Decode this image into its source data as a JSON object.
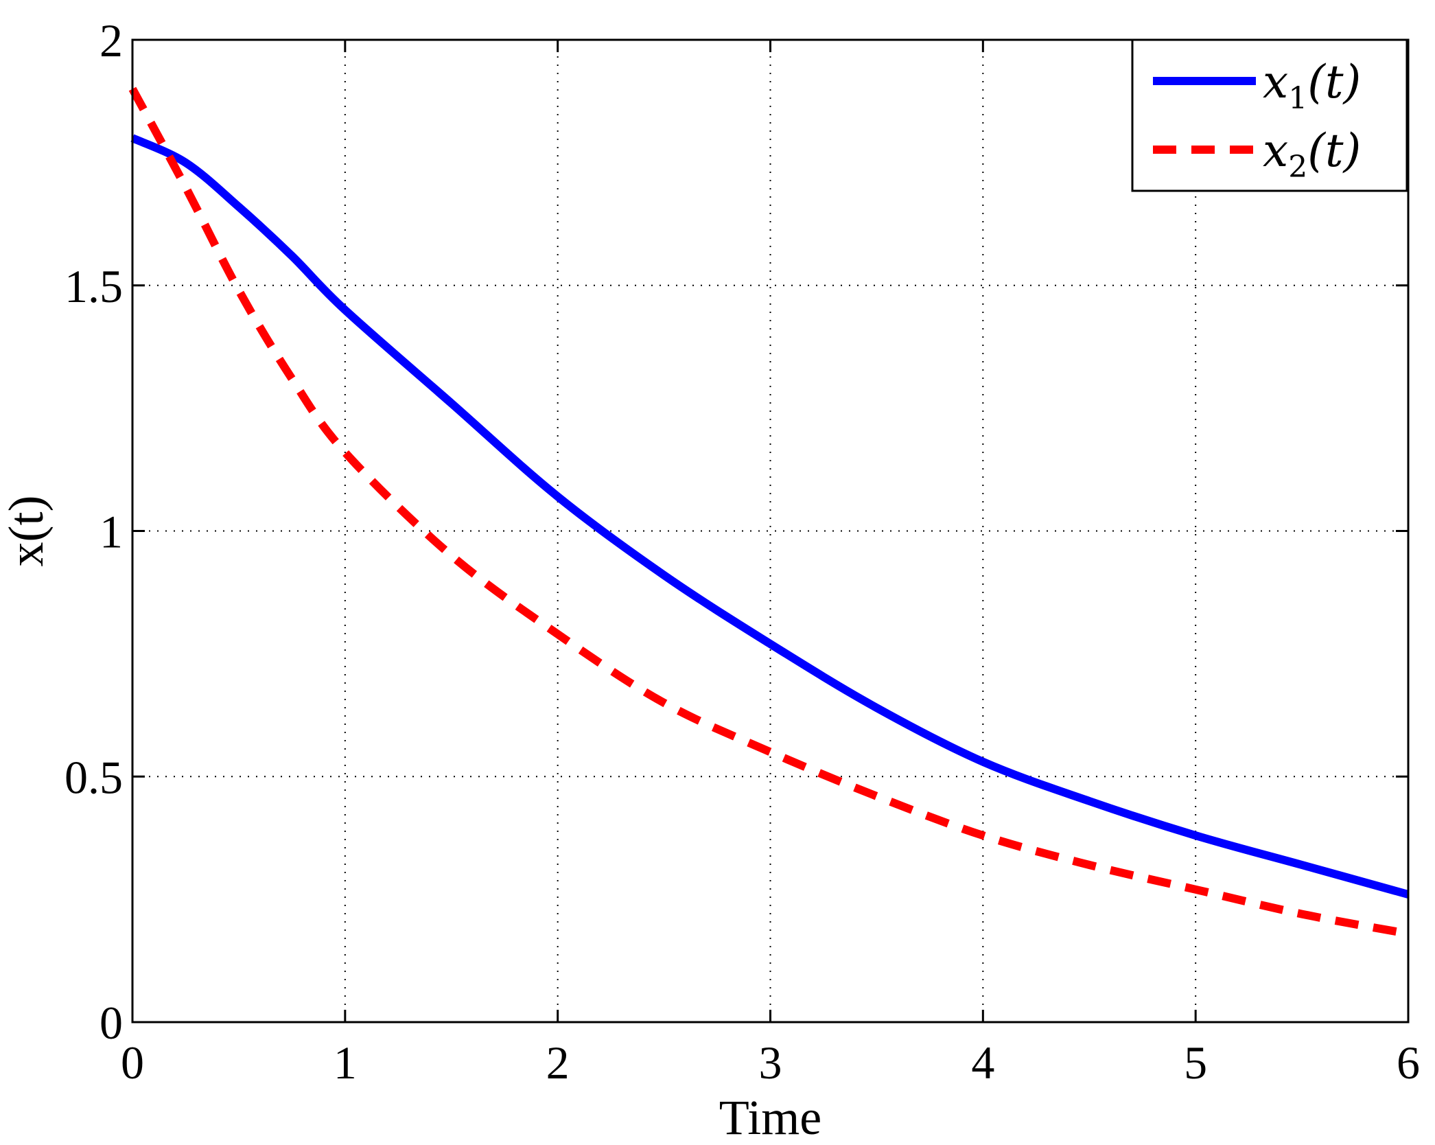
{
  "chart_data": {
    "type": "line",
    "xlabel": "Time",
    "ylabel": "x(t)",
    "xlim": [
      0,
      6
    ],
    "ylim": [
      0,
      2
    ],
    "xticks": [
      0,
      1,
      2,
      3,
      4,
      5,
      6
    ],
    "yticks": [
      0,
      0.5,
      1,
      1.5,
      2
    ],
    "xtick_labels": [
      "0",
      "1",
      "2",
      "3",
      "4",
      "5",
      "6"
    ],
    "ytick_labels": [
      "0",
      "0.5",
      "1",
      "1.5",
      "2"
    ],
    "grid": true,
    "grid_style": "dotted",
    "legend_position": "top-right",
    "x": [
      0,
      0.25,
      0.5,
      0.75,
      1,
      1.5,
      2,
      2.5,
      3,
      3.5,
      4,
      4.5,
      5,
      5.5,
      6
    ],
    "series": [
      {
        "name": "x1(t)",
        "legend_main": "x",
        "legend_sub": "1",
        "legend_tail": "(t)",
        "color": "#0000ff",
        "style": "solid",
        "values": [
          1.8,
          1.75,
          1.66,
          1.56,
          1.45,
          1.26,
          1.07,
          0.91,
          0.77,
          0.64,
          0.53,
          0.45,
          0.38,
          0.32,
          0.26
        ]
      },
      {
        "name": "x2(t)",
        "legend_main": "x",
        "legend_sub": "2",
        "legend_tail": "(t)",
        "color": "#ff0000",
        "style": "dashed",
        "values": [
          1.9,
          1.7,
          1.49,
          1.31,
          1.16,
          0.95,
          0.79,
          0.65,
          0.55,
          0.46,
          0.38,
          0.32,
          0.27,
          0.22,
          0.18
        ]
      }
    ]
  }
}
